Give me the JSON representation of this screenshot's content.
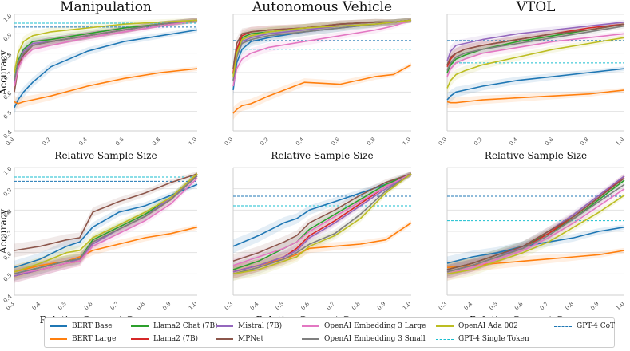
{
  "legend": [
    {
      "name": "BERT Base",
      "color": "#1f77b4",
      "dashed": false
    },
    {
      "name": "BERT Large",
      "color": "#ff7f0e",
      "dashed": false
    },
    {
      "name": "Llama2 Chat (7B)",
      "color": "#2ca02c",
      "dashed": false
    },
    {
      "name": "Llama2 (7B)",
      "color": "#d62728",
      "dashed": false
    },
    {
      "name": "Mistral (7B)",
      "color": "#9467bd",
      "dashed": false
    },
    {
      "name": "MPNet",
      "color": "#8c564b",
      "dashed": false
    },
    {
      "name": "OpenAI Embedding 3 Large",
      "color": "#e377c2",
      "dashed": false
    },
    {
      "name": "OpenAI Embedding 3 Small",
      "color": "#7f7f7f",
      "dashed": false
    },
    {
      "name": "OpenAI Ada 002",
      "color": "#bcbd22",
      "dashed": false
    },
    {
      "name": "GPT-4 Single Token",
      "color": "#17becf",
      "dashed": true
    },
    {
      "name": "GPT-4 CoT",
      "color": "#1f77b4",
      "dashed": true
    }
  ],
  "chart_data": [
    {
      "type": "line",
      "title": "Manipulation",
      "xlabel": "Relative Sample Size",
      "ylabel": "Accuracy",
      "xlim": [
        0,
        1
      ],
      "ylim": [
        0.4,
        1.0
      ],
      "xticks": [
        "0.0",
        "0.2",
        "0.4",
        "0.6",
        "0.8",
        "1.0"
      ],
      "yticks": [
        "0.4",
        "0.5",
        "0.6",
        "0.7",
        "0.8",
        "0.9",
        "1.0"
      ],
      "x": [
        0,
        0.02,
        0.05,
        0.1,
        0.2,
        0.4,
        0.6,
        0.8,
        1.0
      ],
      "series": [
        {
          "name": "BERT Base",
          "values": [
            0.52,
            0.56,
            0.6,
            0.65,
            0.73,
            0.81,
            0.86,
            0.89,
            0.92
          ]
        },
        {
          "name": "BERT Large",
          "values": [
            0.55,
            0.54,
            0.55,
            0.56,
            0.58,
            0.63,
            0.67,
            0.7,
            0.72
          ]
        },
        {
          "name": "Llama2 Chat (7B)",
          "values": [
            0.66,
            0.76,
            0.82,
            0.86,
            0.87,
            0.9,
            0.93,
            0.95,
            0.97
          ]
        },
        {
          "name": "Llama2 (7B)",
          "values": [
            0.64,
            0.74,
            0.8,
            0.84,
            0.86,
            0.89,
            0.92,
            0.95,
            0.97
          ]
        },
        {
          "name": "Mistral (7B)",
          "values": [
            0.65,
            0.75,
            0.81,
            0.85,
            0.86,
            0.89,
            0.92,
            0.95,
            0.97
          ]
        },
        {
          "name": "MPNet",
          "values": [
            0.6,
            0.72,
            0.79,
            0.84,
            0.86,
            0.89,
            0.92,
            0.95,
            0.97
          ]
        },
        {
          "name": "OpenAI Embedding 3 Large",
          "values": [
            0.63,
            0.72,
            0.78,
            0.82,
            0.84,
            0.88,
            0.91,
            0.94,
            0.97
          ]
        },
        {
          "name": "OpenAI Embedding 3 Small",
          "values": [
            0.66,
            0.75,
            0.8,
            0.84,
            0.86,
            0.89,
            0.92,
            0.95,
            0.97
          ]
        },
        {
          "name": "OpenAI Ada 002",
          "values": [
            0.7,
            0.8,
            0.86,
            0.89,
            0.91,
            0.93,
            0.95,
            0.96,
            0.97
          ]
        }
      ],
      "hlines": [
        {
          "name": "GPT-4 Single Token",
          "y": 0.955
        },
        {
          "name": "GPT-4 CoT",
          "y": 0.935
        }
      ]
    },
    {
      "type": "line",
      "title": "Autonomous Vehicle",
      "xlabel": "Relative Sample Size",
      "ylabel": "",
      "xlim": [
        0,
        1
      ],
      "ylim": [
        0.4,
        1.0
      ],
      "xticks": [
        "0.0",
        "0.2",
        "0.4",
        "0.6",
        "0.8",
        "1.0"
      ],
      "yticks": [],
      "x": [
        0,
        0.02,
        0.05,
        0.1,
        0.2,
        0.4,
        0.6,
        0.8,
        0.9,
        1.0
      ],
      "series": [
        {
          "name": "BERT Base",
          "values": [
            0.61,
            0.75,
            0.82,
            0.86,
            0.88,
            0.91,
            0.93,
            0.95,
            0.96,
            0.97
          ]
        },
        {
          "name": "BERT Large",
          "values": [
            0.49,
            0.51,
            0.53,
            0.54,
            0.58,
            0.65,
            0.64,
            0.68,
            0.69,
            0.74
          ]
        },
        {
          "name": "Llama2 Chat (7B)",
          "values": [
            0.69,
            0.8,
            0.88,
            0.9,
            0.91,
            0.93,
            0.95,
            0.96,
            0.96,
            0.97
          ]
        },
        {
          "name": "Llama2 (7B)",
          "values": [
            0.7,
            0.82,
            0.89,
            0.91,
            0.92,
            0.93,
            0.95,
            0.96,
            0.96,
            0.97
          ]
        },
        {
          "name": "Mistral (7B)",
          "values": [
            0.66,
            0.78,
            0.86,
            0.88,
            0.9,
            0.92,
            0.94,
            0.95,
            0.96,
            0.97
          ]
        },
        {
          "name": "MPNet",
          "values": [
            0.72,
            0.85,
            0.9,
            0.91,
            0.92,
            0.93,
            0.95,
            0.96,
            0.96,
            0.97
          ]
        },
        {
          "name": "OpenAI Embedding 3 Large",
          "values": [
            0.63,
            0.72,
            0.77,
            0.8,
            0.83,
            0.86,
            0.89,
            0.92,
            0.94,
            0.97
          ]
        },
        {
          "name": "OpenAI Embedding 3 Small",
          "values": [
            0.66,
            0.78,
            0.85,
            0.87,
            0.89,
            0.91,
            0.93,
            0.95,
            0.96,
            0.97
          ]
        },
        {
          "name": "OpenAI Ada 002",
          "values": [
            0.68,
            0.8,
            0.87,
            0.89,
            0.91,
            0.93,
            0.94,
            0.95,
            0.96,
            0.97
          ]
        }
      ],
      "hlines": [
        {
          "name": "GPT-4 CoT",
          "y": 0.865
        },
        {
          "name": "GPT-4 Single Token",
          "y": 0.82
        }
      ]
    },
    {
      "type": "line",
      "title": "VTOL",
      "xlabel": "Relative Sample Size",
      "ylabel": "",
      "xlim": [
        0,
        1
      ],
      "ylim": [
        0.4,
        1.0
      ],
      "xticks": [
        "0.0",
        "0.2",
        "0.4",
        "0.6",
        "0.8",
        "1.0"
      ],
      "yticks": [],
      "x": [
        0,
        0.02,
        0.05,
        0.1,
        0.2,
        0.4,
        0.6,
        0.8,
        1.0
      ],
      "series": [
        {
          "name": "BERT Base",
          "values": [
            0.56,
            0.58,
            0.6,
            0.61,
            0.63,
            0.66,
            0.68,
            0.7,
            0.72
          ]
        },
        {
          "name": "BERT Large",
          "values": [
            0.55,
            0.545,
            0.545,
            0.55,
            0.56,
            0.57,
            0.58,
            0.59,
            0.61
          ]
        },
        {
          "name": "Llama2 Chat (7B)",
          "values": [
            0.7,
            0.74,
            0.77,
            0.79,
            0.82,
            0.86,
            0.89,
            0.92,
            0.95
          ]
        },
        {
          "name": "Llama2 (7B)",
          "values": [
            0.73,
            0.77,
            0.8,
            0.82,
            0.84,
            0.87,
            0.9,
            0.93,
            0.95
          ]
        },
        {
          "name": "Mistral (7B)",
          "values": [
            0.76,
            0.81,
            0.84,
            0.85,
            0.87,
            0.9,
            0.92,
            0.94,
            0.96
          ]
        },
        {
          "name": "MPNet",
          "values": [
            0.74,
            0.78,
            0.8,
            0.82,
            0.84,
            0.87,
            0.9,
            0.92,
            0.95
          ]
        },
        {
          "name": "OpenAI Embedding 3 Large",
          "values": [
            0.68,
            0.72,
            0.75,
            0.77,
            0.8,
            0.83,
            0.86,
            0.88,
            0.9
          ]
        },
        {
          "name": "OpenAI Embedding 3 Small",
          "values": [
            0.71,
            0.75,
            0.78,
            0.8,
            0.82,
            0.85,
            0.88,
            0.91,
            0.94
          ]
        },
        {
          "name": "OpenAI Ada 002",
          "values": [
            0.62,
            0.66,
            0.69,
            0.71,
            0.74,
            0.78,
            0.82,
            0.85,
            0.88
          ]
        }
      ],
      "hlines": [
        {
          "name": "GPT-4 CoT",
          "y": 0.865
        },
        {
          "name": "GPT-4 Single Token",
          "y": 0.75
        }
      ]
    },
    {
      "type": "line",
      "title": "",
      "xlabel": "Relative Concept Coverage",
      "ylabel": "Accuracy",
      "xlim": [
        0.3,
        1.0
      ],
      "ylim": [
        0.4,
        1.0
      ],
      "xticks": [
        "0.3",
        "0.4",
        "0.5",
        "0.6",
        "0.7",
        "0.8",
        "0.9",
        "1.0"
      ],
      "yticks": [
        "0.4",
        "0.5",
        "0.6",
        "0.7",
        "0.8",
        "0.9",
        "1.0"
      ],
      "x": [
        0.3,
        0.4,
        0.5,
        0.55,
        0.6,
        0.7,
        0.8,
        0.9,
        1.0
      ],
      "series": [
        {
          "name": "BERT Base",
          "values": [
            0.53,
            0.57,
            0.63,
            0.65,
            0.72,
            0.79,
            0.82,
            0.87,
            0.92
          ]
        },
        {
          "name": "BERT Large",
          "values": [
            0.51,
            0.54,
            0.56,
            0.58,
            0.61,
            0.64,
            0.67,
            0.69,
            0.72
          ]
        },
        {
          "name": "Llama2 Chat (7B)",
          "values": [
            0.5,
            0.53,
            0.56,
            0.57,
            0.66,
            0.72,
            0.78,
            0.86,
            0.97
          ]
        },
        {
          "name": "Llama2 (7B)",
          "values": [
            0.49,
            0.52,
            0.55,
            0.56,
            0.65,
            0.71,
            0.77,
            0.85,
            0.97
          ]
        },
        {
          "name": "Mistral (7B)",
          "values": [
            0.49,
            0.52,
            0.55,
            0.57,
            0.64,
            0.71,
            0.77,
            0.86,
            0.96
          ]
        },
        {
          "name": "MPNet",
          "values": [
            0.61,
            0.63,
            0.66,
            0.67,
            0.79,
            0.84,
            0.88,
            0.93,
            0.97
          ]
        },
        {
          "name": "OpenAI Embedding 3 Large",
          "values": [
            0.5,
            0.52,
            0.55,
            0.56,
            0.63,
            0.69,
            0.75,
            0.83,
            0.95
          ]
        },
        {
          "name": "OpenAI Embedding 3 Small",
          "values": [
            0.5,
            0.53,
            0.56,
            0.57,
            0.65,
            0.71,
            0.77,
            0.85,
            0.96
          ]
        },
        {
          "name": "OpenAI Ada 002",
          "values": [
            0.51,
            0.55,
            0.6,
            0.61,
            0.67,
            0.73,
            0.79,
            0.86,
            0.97
          ]
        }
      ],
      "hlines": [
        {
          "name": "GPT-4 Single Token",
          "y": 0.955
        },
        {
          "name": "GPT-4 CoT",
          "y": 0.935
        }
      ]
    },
    {
      "type": "line",
      "title": "",
      "xlabel": "Relative Concept Coverage",
      "ylabel": "",
      "xlim": [
        0.3,
        1.0
      ],
      "ylim": [
        0.4,
        1.0
      ],
      "xticks": [
        "0.3",
        "0.4",
        "0.5",
        "0.6",
        "0.7",
        "0.8",
        "0.9",
        "1.0"
      ],
      "yticks": [],
      "x": [
        0.3,
        0.4,
        0.5,
        0.55,
        0.6,
        0.7,
        0.8,
        0.9,
        1.0
      ],
      "series": [
        {
          "name": "BERT Base",
          "values": [
            0.63,
            0.68,
            0.74,
            0.76,
            0.8,
            0.84,
            0.88,
            0.92,
            0.97
          ]
        },
        {
          "name": "BERT Large",
          "values": [
            0.51,
            0.54,
            0.57,
            0.59,
            0.62,
            0.63,
            0.64,
            0.66,
            0.74
          ]
        },
        {
          "name": "Llama2 Chat (7B)",
          "values": [
            0.52,
            0.56,
            0.62,
            0.65,
            0.71,
            0.78,
            0.85,
            0.92,
            0.97
          ]
        },
        {
          "name": "Llama2 (7B)",
          "values": [
            0.51,
            0.54,
            0.58,
            0.62,
            0.68,
            0.75,
            0.83,
            0.91,
            0.97
          ]
        },
        {
          "name": "Mistral (7B)",
          "values": [
            0.51,
            0.54,
            0.58,
            0.61,
            0.67,
            0.74,
            0.82,
            0.9,
            0.97
          ]
        },
        {
          "name": "MPNet",
          "values": [
            0.56,
            0.6,
            0.65,
            0.68,
            0.74,
            0.8,
            0.87,
            0.93,
            0.97
          ]
        },
        {
          "name": "OpenAI Embedding 3 Large",
          "values": [
            0.54,
            0.58,
            0.62,
            0.65,
            0.7,
            0.77,
            0.84,
            0.91,
            0.97
          ]
        },
        {
          "name": "OpenAI Embedding 3 Small",
          "values": [
            0.5,
            0.53,
            0.57,
            0.6,
            0.64,
            0.69,
            0.78,
            0.89,
            0.97
          ]
        },
        {
          "name": "OpenAI Ada 002",
          "values": [
            0.5,
            0.52,
            0.56,
            0.58,
            0.63,
            0.68,
            0.76,
            0.88,
            0.97
          ]
        }
      ],
      "hlines": [
        {
          "name": "GPT-4 CoT",
          "y": 0.865
        },
        {
          "name": "GPT-4 Single Token",
          "y": 0.82
        }
      ]
    },
    {
      "type": "line",
      "title": "",
      "xlabel": "Relative Concept Coverage",
      "ylabel": "",
      "xlim": [
        0.3,
        1.0
      ],
      "ylim": [
        0.4,
        1.0
      ],
      "xticks": [
        "0.3",
        "0.4",
        "0.5",
        "0.6",
        "0.7",
        "0.8",
        "0.9",
        "1.0"
      ],
      "yticks": [],
      "x": [
        0.3,
        0.4,
        0.5,
        0.6,
        0.7,
        0.8,
        0.9,
        1.0
      ],
      "series": [
        {
          "name": "BERT Base",
          "values": [
            0.55,
            0.58,
            0.6,
            0.63,
            0.65,
            0.67,
            0.7,
            0.72
          ]
        },
        {
          "name": "BERT Large",
          "values": [
            0.53,
            0.54,
            0.55,
            0.56,
            0.57,
            0.58,
            0.59,
            0.61
          ]
        },
        {
          "name": "Llama2 Chat (7B)",
          "values": [
            0.52,
            0.55,
            0.59,
            0.63,
            0.69,
            0.76,
            0.85,
            0.94
          ]
        },
        {
          "name": "Llama2 (7B)",
          "values": [
            0.51,
            0.54,
            0.58,
            0.62,
            0.69,
            0.77,
            0.86,
            0.96
          ]
        },
        {
          "name": "Mistral (7B)",
          "values": [
            0.51,
            0.54,
            0.58,
            0.63,
            0.7,
            0.78,
            0.87,
            0.96
          ]
        },
        {
          "name": "MPNet",
          "values": [
            0.52,
            0.55,
            0.59,
            0.63,
            0.7,
            0.77,
            0.86,
            0.95
          ]
        },
        {
          "name": "OpenAI Embedding 3 Large",
          "values": [
            0.5,
            0.53,
            0.57,
            0.61,
            0.67,
            0.74,
            0.82,
            0.9
          ]
        },
        {
          "name": "OpenAI Embedding 3 Small",
          "values": [
            0.51,
            0.54,
            0.58,
            0.62,
            0.68,
            0.76,
            0.84,
            0.92
          ]
        },
        {
          "name": "OpenAI Ada 002",
          "values": [
            0.5,
            0.52,
            0.56,
            0.6,
            0.65,
            0.72,
            0.79,
            0.87
          ]
        }
      ],
      "hlines": [
        {
          "name": "GPT-4 CoT",
          "y": 0.865
        },
        {
          "name": "GPT-4 Single Token",
          "y": 0.75
        }
      ]
    }
  ]
}
